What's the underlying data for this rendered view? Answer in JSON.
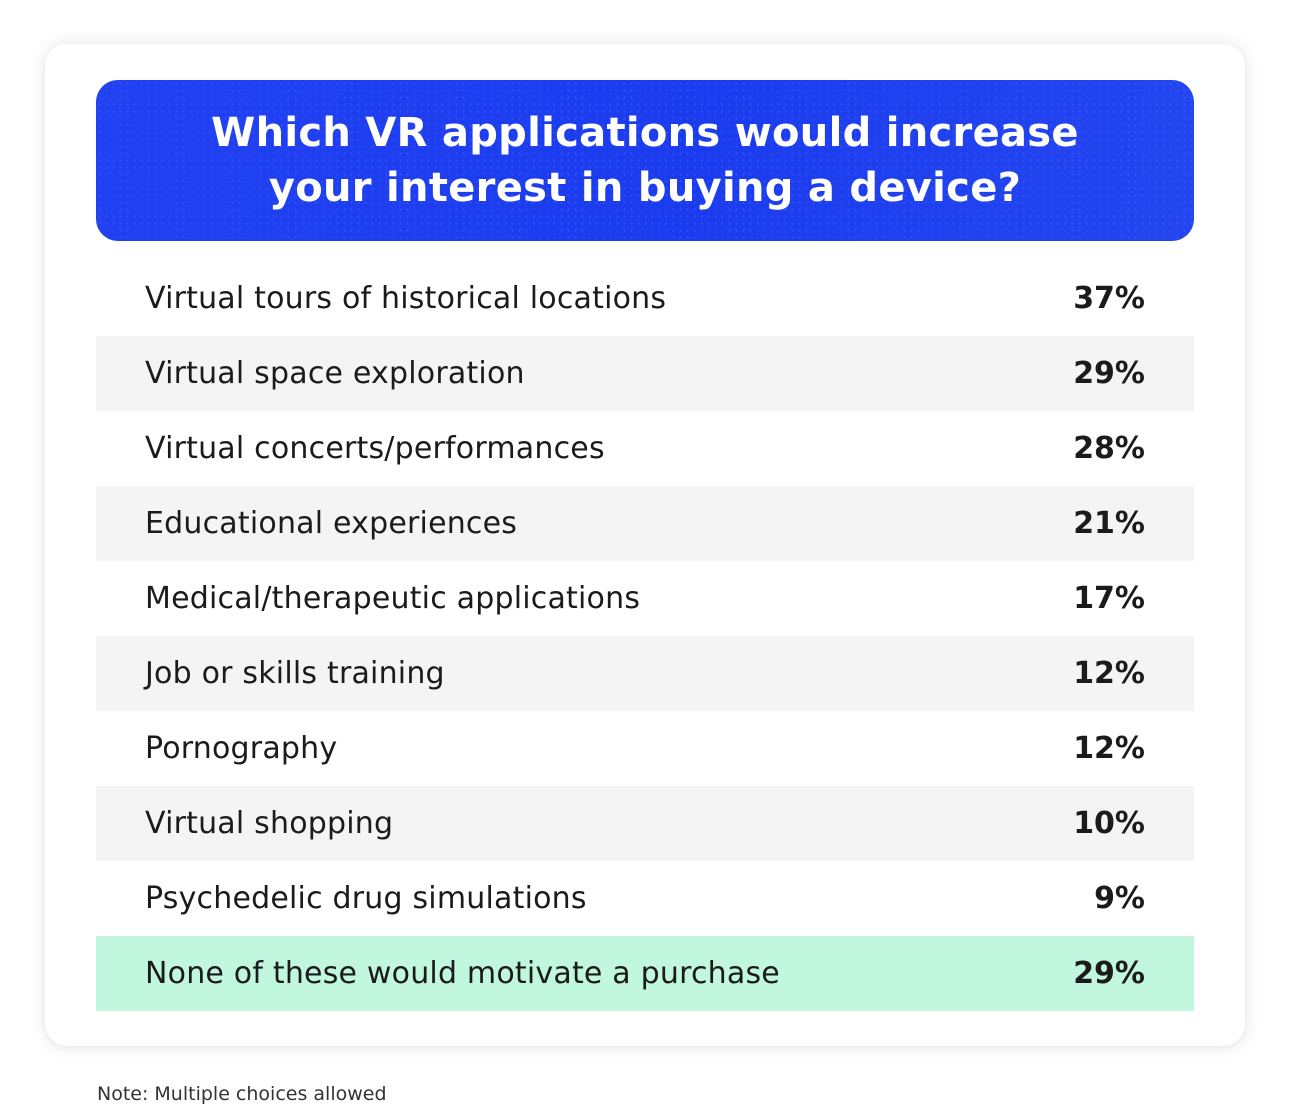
{
  "header": {
    "title_line1": "Which VR applications would increase",
    "title_line2": "your interest in buying a device?",
    "background_color": "#1e3ff0"
  },
  "rows": [
    {
      "label": "Virtual tours of historical locations",
      "value": "37%"
    },
    {
      "label": "Virtual space exploration",
      "value": "29%"
    },
    {
      "label": "Virtual concerts/performances",
      "value": "28%"
    },
    {
      "label": "Educational experiences",
      "value": "21%"
    },
    {
      "label": "Medical/therapeutic applications",
      "value": "17%"
    },
    {
      "label": "Job or skills training",
      "value": "12%"
    },
    {
      "label": "Pornography",
      "value": "12%"
    },
    {
      "label": "Virtual shopping",
      "value": "10%"
    },
    {
      "label": "Psychedelic drug simulations",
      "value": "9%"
    },
    {
      "label": "None of these would motivate a purchase",
      "value": "29%"
    }
  ],
  "note": "Note: Multiple choices allowed",
  "colors": {
    "alt_row": "#f4f4f4",
    "highlight_row": "#c2f7df",
    "text": "#1b1b1b"
  },
  "chart_data": {
    "type": "table",
    "title": "Which VR applications would increase your interest in buying a device?",
    "categories": [
      "Virtual tours of historical locations",
      "Virtual space exploration",
      "Virtual concerts/performances",
      "Educational experiences",
      "Medical/therapeutic applications",
      "Job or skills training",
      "Pornography",
      "Virtual shopping",
      "Psychedelic drug simulations",
      "None of these would motivate a purchase"
    ],
    "values": [
      37,
      29,
      28,
      21,
      17,
      12,
      12,
      10,
      9,
      29
    ],
    "unit": "%",
    "highlighted_category": "None of these would motivate a purchase",
    "annotation": "Note: Multiple choices allowed"
  }
}
